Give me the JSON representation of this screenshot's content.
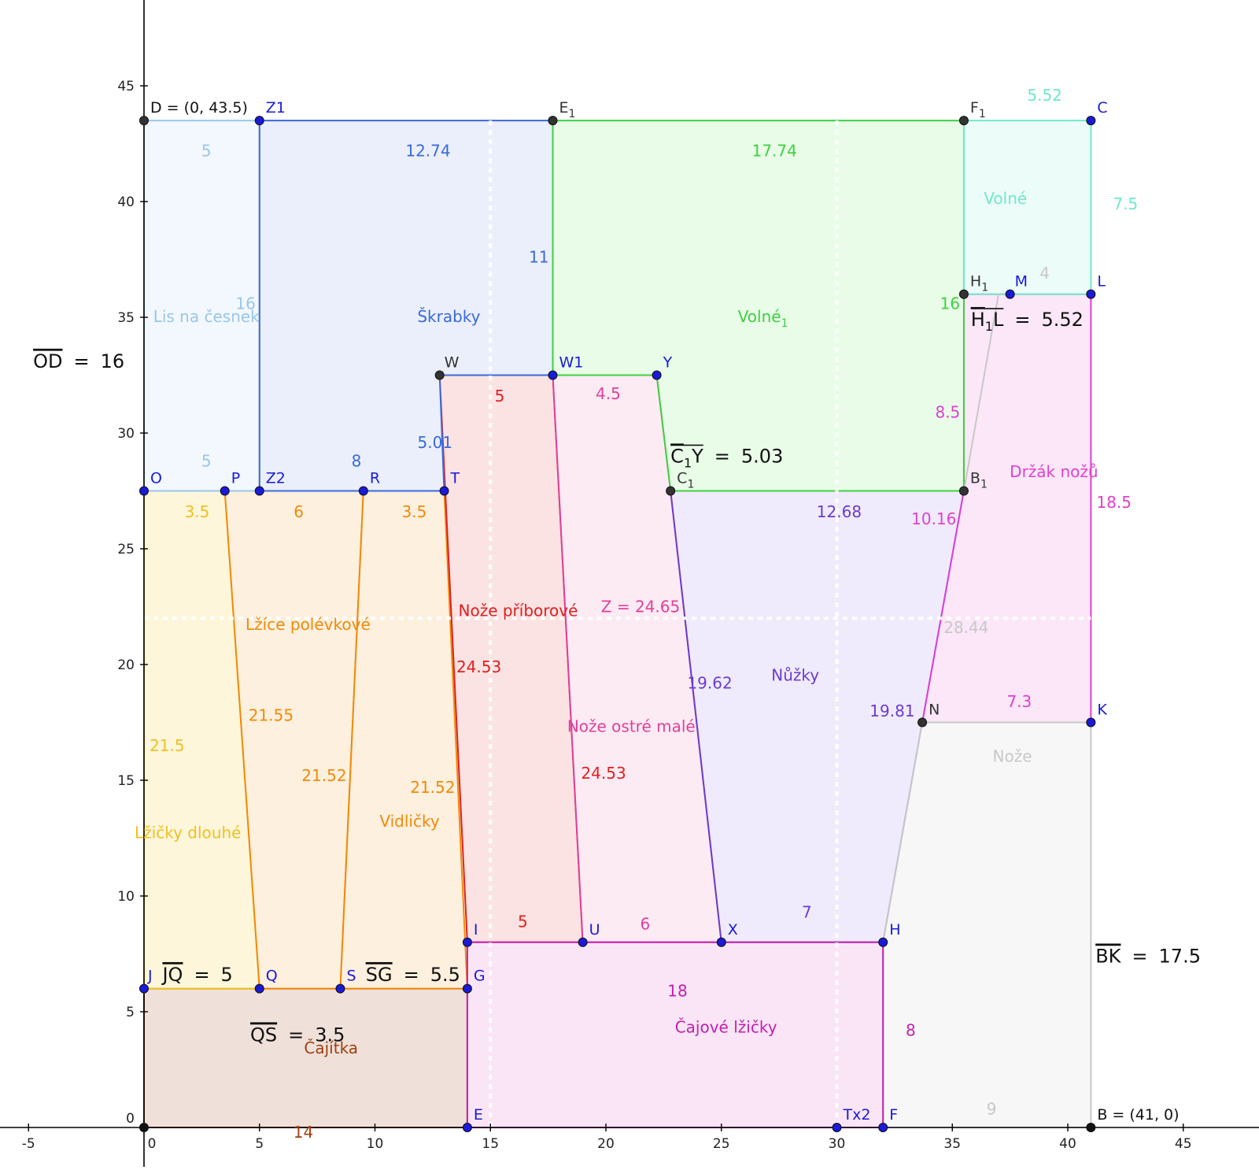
{
  "axes": {
    "x_ticks": [
      "-5",
      "0",
      "5",
      "10",
      "15",
      "20",
      "25",
      "30",
      "35",
      "40",
      "45"
    ],
    "x_tick_values": [
      -5,
      0,
      5,
      10,
      15,
      20,
      25,
      30,
      35,
      40,
      45
    ],
    "y_ticks": [
      "0",
      "5",
      "10",
      "15",
      "20",
      "25",
      "30",
      "35",
      "40",
      "45"
    ],
    "y_tick_values": [
      0,
      5,
      10,
      15,
      20,
      25,
      30,
      35,
      40,
      45
    ]
  },
  "regions": [
    {
      "id": "cajitka",
      "name": "Čajítka",
      "color": "#a0400e",
      "fill": "#e9d6cd",
      "points": [
        [
          0,
          0
        ],
        [
          14,
          0
        ],
        [
          14,
          6
        ],
        [
          0,
          6
        ]
      ],
      "label_at": [
        8.1,
        3.2
      ]
    },
    {
      "id": "lzicky-dlouhe",
      "name": "Lžičky dlouhé",
      "color": "#f0c020",
      "fill": "#fdf3cf",
      "points": [
        [
          0,
          6
        ],
        [
          5,
          6
        ],
        [
          3.5,
          27.5
        ],
        [
          0,
          27.5
        ]
      ],
      "label_at": [
        1.9,
        12.5
      ]
    },
    {
      "id": "lzice-polevkove",
      "name": "Lžíce polévkové",
      "color": "#f08a0a",
      "fill": "#fdebd3",
      "points": [
        [
          5,
          6
        ],
        [
          8.5,
          6
        ],
        [
          9.5,
          27.5
        ],
        [
          3.5,
          27.5
        ]
      ],
      "label_at": [
        7.1,
        21.5
      ]
    },
    {
      "id": "vidlicky",
      "name": "Vidličky",
      "color": "#f08a0a",
      "fill": "#fdebd3",
      "points": [
        [
          8.5,
          6
        ],
        [
          14,
          6
        ],
        [
          13,
          27.5
        ],
        [
          9.5,
          27.5
        ]
      ],
      "label_at": [
        11.5,
        13.0
      ]
    },
    {
      "id": "noze-priborove",
      "name": "Nože příborové",
      "color": "#e02020",
      "fill": "#fbdada",
      "points": [
        [
          14,
          8
        ],
        [
          19,
          8
        ],
        [
          17.7,
          32.5
        ],
        [
          12.8,
          32.5
        ]
      ],
      "label_at": [
        16.2,
        22.1
      ]
    },
    {
      "id": "noze-ostre-male",
      "name": "Nože ostré malé",
      "color": "#e0409a",
      "fill": "#fce4f0",
      "points": [
        [
          19,
          8
        ],
        [
          25,
          8
        ],
        [
          22.8,
          27.5
        ],
        [
          22.2,
          32.5
        ],
        [
          17.7,
          32.5
        ]
      ],
      "label_at": [
        21.1,
        17.1
      ]
    },
    {
      "id": "nuzky",
      "name": "Nůžky",
      "color": "#6a3cd0",
      "fill": "#ebe4fb",
      "points": [
        [
          25,
          8
        ],
        [
          32,
          8
        ],
        [
          33.7,
          17.5
        ],
        [
          35.5,
          27.5
        ],
        [
          22.8,
          27.5
        ]
      ],
      "label_at": [
        28.2,
        19.3
      ]
    },
    {
      "id": "drzak-nozu",
      "name": "Držák nožů",
      "color": "#e040d0",
      "fill": "#f9dff6",
      "points": [
        [
          35.5,
          27.5
        ],
        [
          35.5,
          36
        ],
        [
          41,
          36
        ],
        [
          41,
          17.5
        ],
        [
          33.7,
          17.5
        ]
      ],
      "label_at": [
        39.4,
        28.1
      ]
    },
    {
      "id": "noze",
      "name": "Nože",
      "color": "#c8c8c8",
      "fill": "#f4f4f4",
      "points": [
        [
          32,
          0
        ],
        [
          41,
          0
        ],
        [
          41,
          17.5
        ],
        [
          33.7,
          17.5
        ],
        [
          32,
          8
        ]
      ],
      "label_at": [
        37.6,
        15.8
      ]
    },
    {
      "id": "cajove-lzicky",
      "name": "Čajové lžičky",
      "color": "#c020b0",
      "fill": "#f8dcf3",
      "points": [
        [
          14,
          0
        ],
        [
          32,
          0
        ],
        [
          32,
          8
        ],
        [
          14,
          8
        ]
      ],
      "label_at": [
        25.2,
        4.1
      ]
    },
    {
      "id": "lis-na-cesnek",
      "name": "Lis na česnek",
      "color": "#9ac6ea",
      "fill": "#eef5fc",
      "points": [
        [
          0,
          27.5
        ],
        [
          5,
          27.5
        ],
        [
          5,
          43.5
        ],
        [
          0,
          43.5
        ]
      ],
      "label_at": [
        2.7,
        34.8
      ]
    },
    {
      "id": "skrabky",
      "name": "Škrabky",
      "color": "#3a6ad8",
      "fill": "#e4eafb",
      "points": [
        [
          5,
          27.5
        ],
        [
          13,
          27.5
        ],
        [
          12.8,
          32.5
        ],
        [
          17.7,
          32.5
        ],
        [
          17.7,
          43.5
        ],
        [
          5,
          43.5
        ]
      ],
      "label_at": [
        13.2,
        34.8
      ]
    },
    {
      "id": "volne1",
      "name": "Volné",
      "subscript": "1",
      "color": "#40d040",
      "fill": "#e0fbe0",
      "points": [
        [
          17.7,
          32.5
        ],
        [
          22.2,
          32.5
        ],
        [
          22.8,
          27.5
        ],
        [
          35.5,
          27.5
        ],
        [
          35.5,
          43.5
        ],
        [
          17.7,
          43.5
        ]
      ],
      "label_at": [
        26.8,
        34.8
      ]
    },
    {
      "id": "volne",
      "name": "Volné",
      "color": "#70e8cc",
      "fill": "#e6fbf5",
      "points": [
        [
          35.5,
          36
        ],
        [
          41,
          36
        ],
        [
          41,
          43.5
        ],
        [
          35.5,
          43.5
        ]
      ],
      "label_at": [
        37.3,
        39.9
      ]
    }
  ],
  "points": [
    {
      "id": "D",
      "name": "D = (0, 43.5)",
      "x": 0,
      "y": 43.5,
      "dot": "#333333",
      "color": "#111111",
      "dx": 8,
      "dy": -10
    },
    {
      "id": "Z1",
      "name": "Z1",
      "x": 5,
      "y": 43.5,
      "dot": "#1a1ad8",
      "color": "#1a1ad8",
      "dx": 8,
      "dy": -10
    },
    {
      "id": "E1",
      "name": "E",
      "sub": "1",
      "x": 17.7,
      "y": 43.5,
      "dot": "#333333",
      "color": "#333333",
      "dx": 8,
      "dy": -10
    },
    {
      "id": "F1",
      "name": "F",
      "sub": "1",
      "x": 35.5,
      "y": 43.5,
      "dot": "#333333",
      "color": "#333333",
      "dx": 8,
      "dy": -10
    },
    {
      "id": "C",
      "name": "C",
      "x": 41,
      "y": 43.5,
      "dot": "#1a1ad8",
      "color": "#1a1ad8",
      "dx": 8,
      "dy": -10
    },
    {
      "id": "H1",
      "name": "H",
      "sub": "1",
      "x": 35.5,
      "y": 36,
      "dot": "#333333",
      "color": "#333333",
      "dx": 8,
      "dy": -10
    },
    {
      "id": "M",
      "name": "M",
      "x": 37.5,
      "y": 36,
      "dot": "#1a1ad8",
      "color": "#1a1ad8",
      "dx": 6,
      "dy": -10
    },
    {
      "id": "L",
      "name": "L",
      "x": 41,
      "y": 36,
      "dot": "#1a1ad8",
      "color": "#1a1ad8",
      "dx": 8,
      "dy": -10
    },
    {
      "id": "W",
      "name": "W",
      "x": 12.8,
      "y": 32.5,
      "dot": "#333333",
      "color": "#333333",
      "dx": 6,
      "dy": -10
    },
    {
      "id": "W1",
      "name": "W1",
      "x": 17.7,
      "y": 32.5,
      "dot": "#1a1ad8",
      "color": "#1a1ad8",
      "dx": 8,
      "dy": -10
    },
    {
      "id": "Y",
      "name": "Y",
      "x": 22.2,
      "y": 32.5,
      "dot": "#1a1ad8",
      "color": "#1a1ad8",
      "dx": 8,
      "dy": -10
    },
    {
      "id": "O",
      "name": "O",
      "x": 0,
      "y": 27.5,
      "dot": "#1a1ad8",
      "color": "#1a1ad8",
      "dx": 8,
      "dy": -10
    },
    {
      "id": "P",
      "name": "P",
      "x": 3.5,
      "y": 27.5,
      "dot": "#1a1ad8",
      "color": "#1a1ad8",
      "dx": 8,
      "dy": -10
    },
    {
      "id": "Z2",
      "name": "Z2",
      "x": 5,
      "y": 27.5,
      "dot": "#1a1ad8",
      "color": "#1a1ad8",
      "dx": 8,
      "dy": -10
    },
    {
      "id": "R",
      "name": "R",
      "x": 9.5,
      "y": 27.5,
      "dot": "#1a1ad8",
      "color": "#1a1ad8",
      "dx": 8,
      "dy": -10
    },
    {
      "id": "T",
      "name": "T",
      "x": 13,
      "y": 27.5,
      "dot": "#1a1ad8",
      "color": "#1a1ad8",
      "dx": 8,
      "dy": -10
    },
    {
      "id": "C1",
      "name": "C",
      "sub": "1",
      "x": 22.8,
      "y": 27.5,
      "dot": "#333333",
      "color": "#333333",
      "dx": 8,
      "dy": -10
    },
    {
      "id": "B1",
      "name": "B",
      "sub": "1",
      "x": 35.5,
      "y": 27.5,
      "dot": "#333333",
      "color": "#333333",
      "dx": 8,
      "dy": -10
    },
    {
      "id": "N",
      "name": "N",
      "x": 33.7,
      "y": 17.5,
      "dot": "#333333",
      "color": "#333333",
      "dx": 8,
      "dy": -10
    },
    {
      "id": "K",
      "name": "K",
      "x": 41,
      "y": 17.5,
      "dot": "#1a1ad8",
      "color": "#1a1ad8",
      "dx": 8,
      "dy": -10
    },
    {
      "id": "I",
      "name": "I",
      "x": 14,
      "y": 8,
      "dot": "#1a1ad8",
      "color": "#1a1ad8",
      "dx": 8,
      "dy": -10
    },
    {
      "id": "U",
      "name": "U",
      "x": 19,
      "y": 8,
      "dot": "#1a1ad8",
      "color": "#1a1ad8",
      "dx": 8,
      "dy": -10
    },
    {
      "id": "X",
      "name": "X",
      "x": 25,
      "y": 8,
      "dot": "#1a1ad8",
      "color": "#1a1ad8",
      "dx": 8,
      "dy": -10
    },
    {
      "id": "H",
      "name": "H",
      "x": 32,
      "y": 8,
      "dot": "#1a1ad8",
      "color": "#1a1ad8",
      "dx": 8,
      "dy": -10
    },
    {
      "id": "J",
      "name": "J",
      "x": 0,
      "y": 6,
      "dot": "#1a1ad8",
      "color": "#1a1ad8",
      "dx": 5,
      "dy": -10
    },
    {
      "id": "Q",
      "name": "Q",
      "x": 5,
      "y": 6,
      "dot": "#1a1ad8",
      "color": "#1a1ad8",
      "dx": 8,
      "dy": -10
    },
    {
      "id": "S",
      "name": "S",
      "x": 8.5,
      "y": 6,
      "dot": "#1a1ad8",
      "color": "#1a1ad8",
      "dx": 8,
      "dy": -10
    },
    {
      "id": "G",
      "name": "G",
      "x": 14,
      "y": 6,
      "dot": "#1a1ad8",
      "color": "#1a1ad8",
      "dx": 8,
      "dy": -10
    },
    {
      "id": "E",
      "name": "E",
      "x": 14,
      "y": 0,
      "dot": "#1a1ad8",
      "color": "#1a1ad8",
      "dx": 8,
      "dy": -10
    },
    {
      "id": "Tx2",
      "name": "Tx2",
      "x": 30,
      "y": 0,
      "dot": "#1a1ad8",
      "color": "#1a1ad8",
      "dx": 8,
      "dy": -10
    },
    {
      "id": "F",
      "name": "F",
      "x": 32,
      "y": 0,
      "dot": "#1a1ad8",
      "color": "#1a1ad8",
      "dx": 8,
      "dy": -10
    },
    {
      "id": "B",
      "name": "B = (41, 0)",
      "x": 41,
      "y": 0,
      "dot": "#111111",
      "color": "#111111",
      "dx": 8,
      "dy": -10
    },
    {
      "id": "origin",
      "name": "",
      "x": 0,
      "y": 0,
      "dot": "#111111",
      "color": "#111111",
      "dx": 0,
      "dy": 0
    }
  ],
  "measures": [
    {
      "text": "5",
      "x": 2.7,
      "y": 42.2,
      "color": "#9ac6ea"
    },
    {
      "text": "12.74",
      "x": 12.3,
      "y": 42.2,
      "color": "#3a6ad8"
    },
    {
      "text": "17.74",
      "x": 27.3,
      "y": 42.2,
      "color": "#40d040"
    },
    {
      "text": "5.52",
      "x": 39.0,
      "y": 44.6,
      "color": "#70e8cc"
    },
    {
      "text": "7.5",
      "x": 42.5,
      "y": 39.9,
      "color": "#70e8cc"
    },
    {
      "text": "4",
      "x": 39.0,
      "y": 36.9,
      "color": "#c8c8c8"
    },
    {
      "text": "11",
      "x": 17.1,
      "y": 37.6,
      "color": "#3a6ad8"
    },
    {
      "text": "16",
      "x": 4.4,
      "y": 35.6,
      "color": "#9ac6ea"
    },
    {
      "text": "16",
      "x": 34.9,
      "y": 35.6,
      "color": "#40d040"
    },
    {
      "text": "5",
      "x": 15.4,
      "y": 31.6,
      "color": "#e02020"
    },
    {
      "text": "4.5",
      "x": 20.1,
      "y": 31.7,
      "color": "#e0409a"
    },
    {
      "text": "8.5",
      "x": 34.8,
      "y": 30.9,
      "color": "#e040d0"
    },
    {
      "text": "5.01",
      "x": 12.6,
      "y": 29.6,
      "color": "#3a6ad8"
    },
    {
      "text": "5",
      "x": 2.7,
      "y": 28.8,
      "color": "#9ac6ea"
    },
    {
      "text": "8",
      "x": 9.2,
      "y": 28.8,
      "color": "#3a6ad8"
    },
    {
      "text": "3.5",
      "x": 2.3,
      "y": 26.6,
      "color": "#f0c020"
    },
    {
      "text": "6",
      "x": 6.7,
      "y": 26.6,
      "color": "#f08a0a"
    },
    {
      "text": "3.5",
      "x": 11.7,
      "y": 26.6,
      "color": "#f08a0a"
    },
    {
      "text": "12.68",
      "x": 30.1,
      "y": 26.6,
      "color": "#6a3cd0"
    },
    {
      "text": "10.16",
      "x": 34.2,
      "y": 26.3,
      "color": "#e040d0"
    },
    {
      "text": "18.5",
      "x": 42.0,
      "y": 27.0,
      "color": "#e040d0"
    },
    {
      "text": "Z = 24.65",
      "x": 21.5,
      "y": 22.5,
      "color": "#e0409a"
    },
    {
      "text": "28.44",
      "x": 35.6,
      "y": 21.6,
      "color": "#c8c8c8"
    },
    {
      "text": "24.53",
      "x": 14.5,
      "y": 19.9,
      "color": "#e02020"
    },
    {
      "text": "19.62",
      "x": 24.5,
      "y": 19.2,
      "color": "#6a3cd0"
    },
    {
      "text": "21.55",
      "x": 5.5,
      "y": 17.8,
      "color": "#f08a0a"
    },
    {
      "text": "19.81",
      "x": 32.4,
      "y": 18.0,
      "color": "#6a3cd0"
    },
    {
      "text": "7.3",
      "x": 37.9,
      "y": 18.4,
      "color": "#e040d0"
    },
    {
      "text": "21.5",
      "x": 1.0,
      "y": 16.5,
      "color": "#f0c020"
    },
    {
      "text": "21.52",
      "x": 7.8,
      "y": 15.2,
      "color": "#f08a0a"
    },
    {
      "text": "21.52",
      "x": 12.5,
      "y": 14.7,
      "color": "#f08a0a"
    },
    {
      "text": "24.53",
      "x": 19.9,
      "y": 15.3,
      "color": "#e02020"
    },
    {
      "text": "5",
      "x": 16.4,
      "y": 8.9,
      "color": "#e02020"
    },
    {
      "text": "6",
      "x": 21.7,
      "y": 8.8,
      "color": "#e0409a"
    },
    {
      "text": "7",
      "x": 28.7,
      "y": 9.3,
      "color": "#6a3cd0"
    },
    {
      "text": "18",
      "x": 23.1,
      "y": 5.9,
      "color": "#c020b0"
    },
    {
      "text": "8",
      "x": 33.2,
      "y": 4.2,
      "color": "#c020b0"
    },
    {
      "text": "9",
      "x": 36.7,
      "y": 0.8,
      "color": "#c8c8c8"
    },
    {
      "text": "14",
      "x": 6.9,
      "y": -0.2,
      "color": "#a0400e"
    }
  ],
  "equations": [
    {
      "id": "OD",
      "bar": "OD",
      "eq": "=",
      "value": "16",
      "x": -4.8,
      "y": 33.1
    },
    {
      "id": "H1L",
      "bar": "H",
      "barsub": "1",
      "bartail": "L",
      "eq": "=",
      "value": "5.52",
      "x": 35.8,
      "y": 34.9
    },
    {
      "id": "C1Y",
      "bar": "C",
      "barsub": "1",
      "bartail": "Y",
      "eq": "=",
      "value": "5.03",
      "x": 22.8,
      "y": 29.0
    },
    {
      "id": "JQ",
      "bar": "JQ",
      "eq": "=",
      "value": "5",
      "x": 0.8,
      "y": 6.6
    },
    {
      "id": "SG",
      "bar": "SG",
      "eq": "=",
      "value": "5.5",
      "x": 9.6,
      "y": 6.6
    },
    {
      "id": "QS",
      "bar": "QS",
      "eq": "=",
      "value": "3.5",
      "x": 4.6,
      "y": 4.0
    },
    {
      "id": "BK",
      "bar": "BK",
      "eq": "=",
      "value": "17.5",
      "x": 41.2,
      "y": 7.4
    }
  ],
  "extra_segments": [
    {
      "from": [
        35.5,
        27.5
      ],
      "to": [
        37.0,
        36
      ],
      "color": "#c8c8c8"
    }
  ],
  "guide_lines": [
    {
      "axis": "x",
      "value": 15
    },
    {
      "axis": "x",
      "value": 30
    },
    {
      "axis": "y",
      "value": 22
    }
  ]
}
